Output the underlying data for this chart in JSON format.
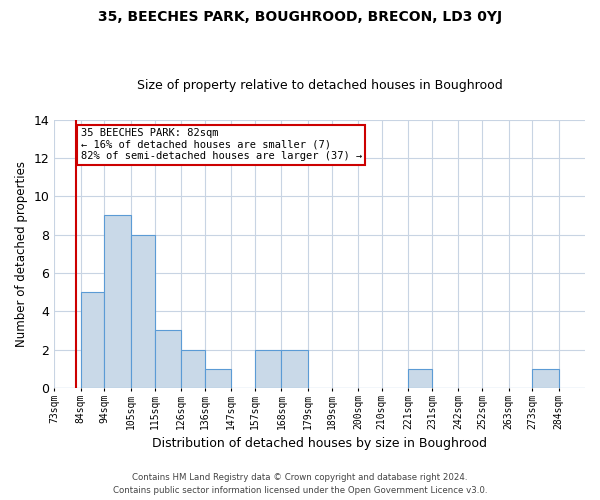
{
  "title": "35, BEECHES PARK, BOUGHROOD, BRECON, LD3 0YJ",
  "subtitle": "Size of property relative to detached houses in Boughrood",
  "xlabel": "Distribution of detached houses by size in Boughrood",
  "ylabel": "Number of detached properties",
  "footnote1": "Contains HM Land Registry data © Crown copyright and database right 2024.",
  "footnote2": "Contains public sector information licensed under the Open Government Licence v3.0.",
  "bin_labels": [
    "73sqm",
    "84sqm",
    "94sqm",
    "105sqm",
    "115sqm",
    "126sqm",
    "136sqm",
    "147sqm",
    "157sqm",
    "168sqm",
    "179sqm",
    "189sqm",
    "200sqm",
    "210sqm",
    "221sqm",
    "231sqm",
    "242sqm",
    "252sqm",
    "263sqm",
    "273sqm",
    "284sqm"
  ],
  "bar_heights": [
    0,
    5,
    9,
    8,
    3,
    2,
    1,
    0,
    2,
    2,
    0,
    0,
    0,
    0,
    1,
    0,
    0,
    0,
    0,
    1,
    0
  ],
  "bar_color": "#c9d9e8",
  "bar_edge_color": "#5b9bd5",
  "bin_edges": [
    73,
    84,
    94,
    105,
    115,
    126,
    136,
    147,
    157,
    168,
    179,
    189,
    200,
    210,
    221,
    231,
    242,
    252,
    263,
    273,
    284,
    295
  ],
  "ylim": [
    0,
    14
  ],
  "yticks": [
    0,
    2,
    4,
    6,
    8,
    10,
    12,
    14
  ],
  "annotation_text": "35 BEECHES PARK: 82sqm\n← 16% of detached houses are smaller (7)\n82% of semi-detached houses are larger (37) →",
  "annotation_box_color": "#ffffff",
  "annotation_box_edge": "#cc0000",
  "vline_color": "#cc0000",
  "vline_x": 82,
  "background_color": "#ffffff"
}
